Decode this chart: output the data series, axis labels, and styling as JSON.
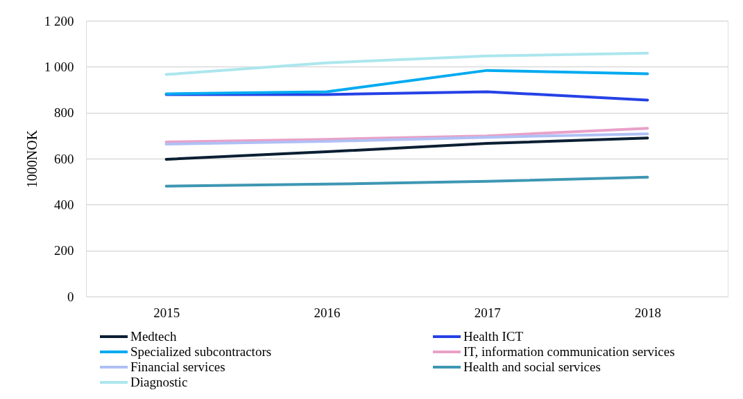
{
  "chart_data": {
    "type": "line",
    "ylabel": "1000NOK",
    "categories": [
      "2015",
      "2016",
      "2017",
      "2018"
    ],
    "series": [
      {
        "name": "Medtech",
        "color": "#0b1f33",
        "values": [
          597,
          630,
          666,
          690
        ]
      },
      {
        "name": "Health ICT",
        "color": "#2541e6",
        "values": [
          879,
          879,
          891,
          855
        ]
      },
      {
        "name": "Specialized subcontractors",
        "color": "#00aaf0",
        "values": [
          882,
          891,
          984,
          969
        ]
      },
      {
        "name": "IT, information communication services",
        "color": "#e8a1c8",
        "values": [
          672,
          684,
          699,
          732
        ]
      },
      {
        "name": "Financial services",
        "color": "#afc0f5",
        "values": [
          663,
          675,
          693,
          708
        ]
      },
      {
        "name": "Health and social services",
        "color": "#3e97b3",
        "values": [
          480,
          489,
          501,
          519
        ]
      },
      {
        "name": "Diagnostic",
        "color": "#ace6ee",
        "values": [
          966,
          1017,
          1047,
          1059
        ]
      }
    ],
    "ylim": [
      0,
      1200
    ],
    "yticks": [
      0,
      200,
      400,
      600,
      800,
      {
        "value": 1000,
        "label": "1 000"
      },
      {
        "value": 1200,
        "label": "1 200"
      }
    ],
    "grid": "y",
    "legend": "bottom",
    "marker": "none",
    "line_style": "solid"
  }
}
